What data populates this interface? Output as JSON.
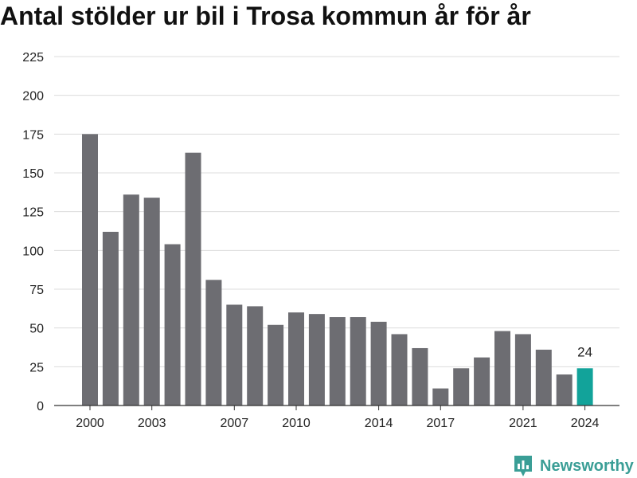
{
  "title": "Antal stölder ur bil i Trosa kommun år för år",
  "brand": {
    "name": "Newsworthy",
    "icon": "newsworthy-logo-icon",
    "color": "#3a9e96"
  },
  "chart_data": {
    "type": "bar",
    "title": "Antal stölder ur bil i Trosa kommun år för år",
    "xlabel": "",
    "ylabel": "",
    "categories": [
      "2000",
      "2001",
      "2002",
      "2003",
      "2004",
      "2005",
      "2006",
      "2007",
      "2008",
      "2009",
      "2010",
      "2011",
      "2012",
      "2013",
      "2014",
      "2015",
      "2016",
      "2017",
      "2018",
      "2019",
      "2020",
      "2021",
      "2022",
      "2023",
      "2024"
    ],
    "values": [
      175,
      112,
      136,
      134,
      104,
      163,
      81,
      65,
      64,
      52,
      60,
      59,
      57,
      57,
      54,
      46,
      37,
      11,
      24,
      31,
      48,
      46,
      36,
      20,
      24
    ],
    "x_tick_labels": [
      "2000",
      "2003",
      "2007",
      "2010",
      "2014",
      "2017",
      "2021",
      "2024"
    ],
    "y_ticks": [
      0,
      25,
      50,
      75,
      100,
      125,
      150,
      175,
      200,
      225
    ],
    "ylim": [
      0,
      225
    ],
    "grid": true,
    "legend": "none",
    "bar_color": "#6d6d72",
    "highlight_color": "#12a39a",
    "highlight_category": "2024",
    "highlight_label": "24"
  }
}
